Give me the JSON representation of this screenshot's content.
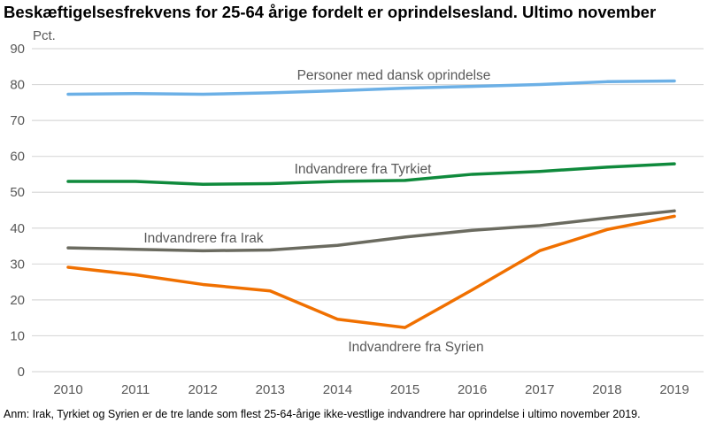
{
  "chart_data": {
    "type": "line",
    "title": "Beskæftigelsesfrekvens for 25-64 årige fordelt er oprindelsesland. Ultimo november",
    "ylabel": "Pct.",
    "xlabel": "",
    "ylim": [
      0,
      90
    ],
    "yticks": [
      "0",
      "10",
      "20",
      "30",
      "40",
      "50",
      "60",
      "70",
      "80",
      "90"
    ],
    "grid": true,
    "x": [
      "2010",
      "2011",
      "2012",
      "2013",
      "2014",
      "2015",
      "2016",
      "2017",
      "2018",
      "2019"
    ],
    "series": [
      {
        "name": "Personer med dansk oprindelse",
        "color": "#6cb0e6",
        "values": [
          77.3,
          77.5,
          77.3,
          77.7,
          78.3,
          79.0,
          79.5,
          80.0,
          80.8,
          81.0
        ]
      },
      {
        "name": "Indvandrere fra Tyrkiet",
        "color": "#0f8a3c",
        "values": [
          53.0,
          53.0,
          52.2,
          52.4,
          53.0,
          53.3,
          55.0,
          55.8,
          57.0,
          57.9
        ]
      },
      {
        "name": "Indvandrere fra Irak",
        "color": "#6b6b60",
        "values": [
          34.5,
          34.1,
          33.7,
          33.9,
          35.2,
          37.5,
          39.4,
          40.7,
          42.8,
          44.8
        ]
      },
      {
        "name": "Indvandrere fra Syrien",
        "color": "#f07000",
        "values": [
          29.1,
          27.0,
          24.3,
          22.5,
          14.6,
          12.3,
          22.8,
          33.7,
          39.6,
          43.3
        ]
      }
    ],
    "note": "Anm: Irak, Tyrkiet og Syrien er de tre lande som flest 25-64-årige ikke-vestlige indvandrere har oprindelse i ultimo november 2019."
  }
}
